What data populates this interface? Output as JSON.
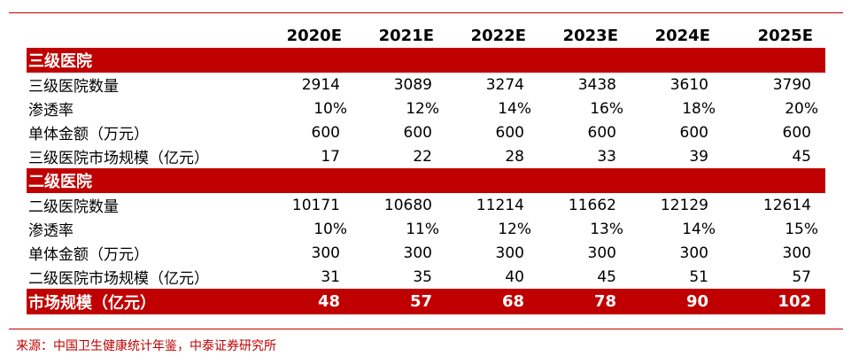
{
  "columns": [
    "2020E",
    "2021E",
    "2022E",
    "2023E",
    "2024E",
    "2025E"
  ],
  "sections": [
    {
      "title": "三级医院",
      "rows": [
        {
          "label": "三级医院数量",
          "values": [
            "2914",
            "3089",
            "3274",
            "3438",
            "3610",
            "3790"
          ]
        },
        {
          "label": "渗透率",
          "values": [
            "10%",
            "12%",
            "14%",
            "16%",
            "18%",
            "20%"
          ]
        },
        {
          "label": "单体金额（万元）",
          "values": [
            "600",
            "600",
            "600",
            "600",
            "600",
            "600"
          ]
        },
        {
          "label": "三级医院市场规模（亿元）",
          "values": [
            "17",
            "22",
            "28",
            "33",
            "39",
            "45"
          ]
        }
      ]
    },
    {
      "title": "二级医院",
      "rows": [
        {
          "label": "二级医院数量",
          "values": [
            "10171",
            "10680",
            "11214",
            "11662",
            "12129",
            "12614"
          ]
        },
        {
          "label": "渗透率",
          "values": [
            "10%",
            "11%",
            "12%",
            "13%",
            "14%",
            "15%"
          ]
        },
        {
          "label": "单体金额（万元）",
          "values": [
            "300",
            "300",
            "300",
            "300",
            "300",
            "300"
          ]
        },
        {
          "label": "二级医院市场规模（亿元）",
          "values": [
            "31",
            "35",
            "40",
            "45",
            "51",
            "57"
          ]
        }
      ]
    }
  ],
  "total": {
    "label": "市场规模（亿元）",
    "values": [
      "48",
      "57",
      "68",
      "78",
      "90",
      "102"
    ]
  },
  "source": "来源：中国卫生健康统计年鉴，中泰证券研究所",
  "colors": {
    "accent": "#c00000",
    "text": "#000000",
    "background": "#ffffff"
  }
}
